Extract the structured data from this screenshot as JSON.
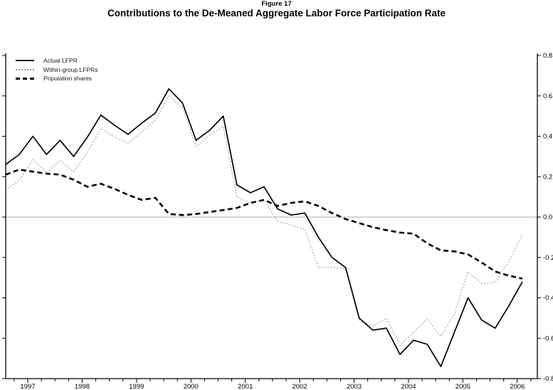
{
  "figure_label": "Figure 17",
  "title": "Contributions to the De-Meaned Aggregate Labor Force Participation Rate",
  "legend": {
    "items": [
      {
        "label": "Actual LFPR",
        "style": "solid"
      },
      {
        "label": "Within-group LFPRs",
        "style": "dotted"
      },
      {
        "label": "Population shares",
        "style": "dashed"
      }
    ]
  },
  "colors": {
    "background": "#ffffff",
    "axis": "#000000",
    "zero_line": "#ababab",
    "solid_series": "#000000",
    "dotted_series": "#8c8c8c",
    "dashed_series": "#000000"
  },
  "chart_data": {
    "type": "line",
    "x_unit": "quarter",
    "x": [
      "1996Q3",
      "1996Q4",
      "1997Q1",
      "1997Q2",
      "1997Q3",
      "1997Q4",
      "1998Q1",
      "1998Q2",
      "1998Q3",
      "1998Q4",
      "1999Q1",
      "1999Q2",
      "1999Q3",
      "1999Q4",
      "2000Q1",
      "2000Q2",
      "2000Q3",
      "2000Q4",
      "2001Q1",
      "2001Q2",
      "2001Q3",
      "2001Q4",
      "2002Q1",
      "2002Q2",
      "2002Q3",
      "2002Q4",
      "2003Q1",
      "2003Q2",
      "2003Q3",
      "2003Q4",
      "2004Q1",
      "2004Q2",
      "2004Q3",
      "2004Q4",
      "2005Q1",
      "2005Q2",
      "2005Q3",
      "2005Q4",
      "2006Q1"
    ],
    "series": [
      {
        "name": "Actual LFPR",
        "line": "solid",
        "color": "#000000",
        "values": [
          0.26,
          0.31,
          0.4,
          0.31,
          0.38,
          0.3,
          0.395,
          0.505,
          0.455,
          0.41,
          0.465,
          0.515,
          0.635,
          0.565,
          0.38,
          0.43,
          0.5,
          0.16,
          0.12,
          0.15,
          0.04,
          0.01,
          0.02,
          -0.1,
          -0.2,
          -0.25,
          -0.5,
          -0.56,
          -0.55,
          -0.68,
          -0.61,
          -0.63,
          -0.74,
          -0.57,
          -0.4,
          -0.51,
          -0.55,
          -0.44,
          -0.32
        ]
      },
      {
        "name": "Within-group LFPRs",
        "line": "dotted",
        "color": "#8c8c8c",
        "values": [
          0.135,
          0.18,
          0.285,
          0.22,
          0.28,
          0.225,
          0.32,
          0.44,
          0.395,
          0.365,
          0.42,
          0.48,
          0.6,
          0.54,
          0.35,
          0.405,
          0.45,
          0.1,
          0.07,
          0.085,
          -0.02,
          -0.04,
          -0.06,
          -0.25,
          -0.25,
          -0.255,
          -0.51,
          -0.54,
          -0.5,
          -0.635,
          -0.57,
          -0.505,
          -0.59,
          -0.48,
          -0.27,
          -0.33,
          -0.325,
          -0.22,
          -0.085
        ]
      },
      {
        "name": "Population shares",
        "line": "dashed",
        "color": "#000000",
        "values": [
          0.21,
          0.235,
          0.225,
          0.215,
          0.21,
          0.185,
          0.15,
          0.165,
          0.14,
          0.11,
          0.085,
          0.095,
          0.015,
          0.01,
          0.015,
          0.025,
          0.035,
          0.045,
          0.07,
          0.085,
          0.055,
          0.07,
          0.078,
          0.055,
          0.02,
          -0.01,
          -0.03,
          -0.05,
          -0.065,
          -0.077,
          -0.082,
          -0.13,
          -0.165,
          -0.17,
          -0.185,
          -0.225,
          -0.27,
          -0.29,
          -0.305
        ]
      }
    ],
    "title": "Contributions to the De-Meaned Aggregate Labor Force Participation Rate",
    "subtitle": "Figure 17",
    "xlabel": "",
    "ylabel": "",
    "x_tick_labels": [
      "1997",
      "1998",
      "1999",
      "2000",
      "2001",
      "2002",
      "2003",
      "2004",
      "2005",
      "2006"
    ],
    "y_tick_labels": [
      "0.8",
      "0.6",
      "0.4",
      "0.2",
      "0.0",
      "-0.2",
      "-0.4",
      "-0.6",
      "-0.8"
    ],
    "y_tick_values": [
      0.8,
      0.6,
      0.4,
      0.2,
      0.0,
      -0.2,
      -0.4,
      -0.6,
      -0.8
    ],
    "ylim": [
      -0.8,
      0.8
    ],
    "y_axis_side": "right",
    "zero_line": true,
    "grid": false,
    "legend_position": "top-left"
  }
}
